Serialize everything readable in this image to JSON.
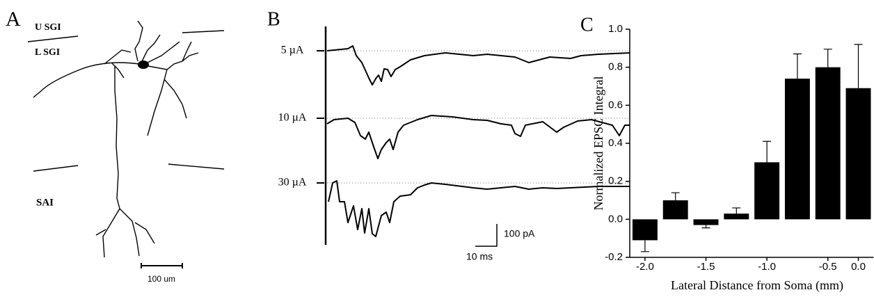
{
  "panel_a": {
    "label": "A",
    "layers": [
      "U SGI",
      "L SGI",
      "SAI"
    ],
    "scale_bar": "100 um"
  },
  "panel_b": {
    "label": "B",
    "stimuli": [
      "5 µA",
      "10 µA",
      "30 µA"
    ],
    "scale_y": "100 pA",
    "scale_x": "10 ms"
  },
  "chart_data": {
    "type": "bar",
    "panel_label": "C",
    "x_label": "Lateral Distance from Soma (mm)",
    "y_label": "Normalized EPSC Integral",
    "categories": [
      "-2.0",
      null,
      "-1.5",
      null,
      "-1.0",
      null,
      "-0.5",
      "0.0"
    ],
    "values": [
      -0.11,
      0.1,
      -0.03,
      0.03,
      0.3,
      0.74,
      0.8,
      0.69
    ],
    "errors": [
      0.06,
      0.04,
      0.015,
      0.03,
      0.11,
      0.13,
      0.095,
      0.23
    ],
    "color": "#000000",
    "ylim": [
      -0.2,
      1.0
    ],
    "yticks": [
      {
        "value": 1,
        "label": "1.0"
      },
      0.8,
      0.6,
      0.4,
      0.2,
      {
        "value": 0,
        "label": "0.0"
      },
      -0.2
    ]
  }
}
